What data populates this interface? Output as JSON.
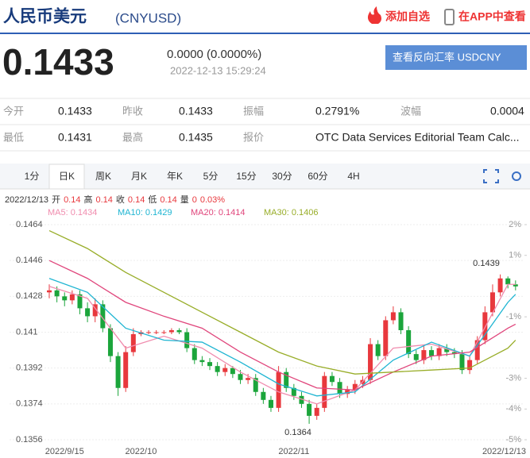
{
  "header": {
    "title": "人民币美元",
    "code": "(CNYUSD)",
    "add_watch": "添加自选",
    "open_app": "在APP中查看"
  },
  "quote": {
    "price": "0.1433",
    "change": "0.0000 (0.0000%)",
    "time": "2022-12-13 15:29:24",
    "reverse_button": "查看反向汇率 USDCNY"
  },
  "stats": [
    [
      {
        "label": "今开",
        "value": "0.1433"
      },
      {
        "label": "昨收",
        "value": "0.1433"
      },
      {
        "label": "振幅",
        "value": "0.2791%"
      },
      {
        "label": "波幅",
        "value": "0.0004"
      }
    ],
    [
      {
        "label": "最低",
        "value": "0.1431"
      },
      {
        "label": "最高",
        "value": "0.1435"
      },
      {
        "label": "报价",
        "value": "OTC Data Services Editorial Team Calc..."
      }
    ]
  ],
  "tabs": [
    "1分",
    "日K",
    "周K",
    "月K",
    "年K",
    "5分",
    "15分",
    "30分",
    "60分",
    "4H"
  ],
  "ohlc": {
    "date": "2022/12/13",
    "items": [
      {
        "label": "开",
        "value": "0.14"
      },
      {
        "label": "高",
        "value": "0.14"
      },
      {
        "label": "收",
        "value": "0.14"
      },
      {
        "label": "低",
        "value": "0.14"
      },
      {
        "label": "量",
        "value": "0"
      }
    ],
    "change": "0.03%"
  },
  "chart_data": {
    "type": "candlestick",
    "categories": [
      null,
      null,
      "2022/9/15",
      null,
      null,
      null,
      null,
      null,
      null,
      null,
      null,
      null,
      "2022/10",
      null,
      null,
      null,
      null,
      null,
      null,
      null,
      null,
      null,
      null,
      null,
      null,
      null,
      null,
      null,
      null,
      null,
      null,
      null,
      "2022/11",
      null,
      null,
      null,
      null,
      null,
      null,
      null,
      null,
      null,
      null,
      null,
      null,
      null,
      null,
      null,
      null,
      null,
      null,
      null,
      null,
      null,
      null,
      null,
      null,
      null,
      null,
      null,
      null,
      "2022/12/13"
    ],
    "open": [
      0.143,
      0.1431,
      0.1428,
      0.1426,
      0.1429,
      0.1422,
      0.1418,
      0.1424,
      0.1412,
      0.1398,
      0.1382,
      0.14,
      0.1409,
      0.141,
      0.141,
      0.141,
      0.141,
      0.1411,
      0.141,
      0.1402,
      0.1396,
      0.1395,
      0.1393,
      0.139,
      0.1392,
      0.1389,
      0.1386,
      0.1387,
      0.138,
      0.1376,
      0.1372,
      0.139,
      0.1382,
      0.1378,
      0.1374,
      0.1368,
      0.1372,
      0.1388,
      0.1385,
      0.1379,
      0.1381,
      0.1384,
      0.1386,
      0.1404,
      0.1398,
      0.1416,
      0.142,
      0.1411,
      0.1399,
      0.1396,
      0.1401,
      0.1398,
      0.1402,
      0.14,
      0.1399,
      0.1391,
      0.1396,
      0.1406,
      0.142,
      0.143,
      0.1437,
      0.1434
    ],
    "close": [
      0.1431,
      0.1428,
      0.1426,
      0.1429,
      0.1422,
      0.1418,
      0.1424,
      0.1412,
      0.1398,
      0.1382,
      0.14,
      0.1409,
      0.141,
      0.141,
      0.141,
      0.141,
      0.1411,
      0.141,
      0.1402,
      0.1396,
      0.1395,
      0.1393,
      0.139,
      0.1392,
      0.1389,
      0.1386,
      0.1387,
      0.138,
      0.1376,
      0.1372,
      0.139,
      0.1382,
      0.1378,
      0.1374,
      0.1368,
      0.1372,
      0.1388,
      0.1385,
      0.1379,
      0.1381,
      0.1384,
      0.1386,
      0.1404,
      0.1398,
      0.1416,
      0.142,
      0.1411,
      0.1399,
      0.1396,
      0.1401,
      0.1398,
      0.1402,
      0.14,
      0.1399,
      0.1391,
      0.1396,
      0.1406,
      0.142,
      0.143,
      0.1437,
      0.1434,
      0.1433
    ],
    "high": [
      0.1434,
      0.1433,
      0.143,
      0.1431,
      0.1431,
      0.1425,
      0.1427,
      0.1426,
      0.1414,
      0.14,
      0.1403,
      0.1412,
      0.1411,
      0.1411,
      0.1411,
      0.1411,
      0.1412,
      0.1412,
      0.1412,
      0.1404,
      0.1398,
      0.1397,
      0.1395,
      0.1394,
      0.1393,
      0.1391,
      0.1389,
      0.1389,
      0.1382,
      0.1378,
      0.1393,
      0.1392,
      0.1384,
      0.138,
      0.1376,
      0.1374,
      0.139,
      0.139,
      0.1387,
      0.1383,
      0.1386,
      0.1388,
      0.1407,
      0.1406,
      0.1418,
      0.1423,
      0.1422,
      0.1413,
      0.1401,
      0.1403,
      0.1403,
      0.1404,
      0.1404,
      0.1402,
      0.1401,
      0.1398,
      0.1408,
      0.1423,
      0.1434,
      0.1439,
      0.1438,
      0.1436
    ],
    "low": [
      0.1427,
      0.1425,
      0.1423,
      0.1424,
      0.1419,
      0.1415,
      0.1415,
      0.141,
      0.1395,
      0.1378,
      0.138,
      0.1398,
      0.1408,
      0.1409,
      0.1409,
      0.1409,
      0.1409,
      0.1409,
      0.14,
      0.1394,
      0.1393,
      0.1391,
      0.1388,
      0.1388,
      0.1387,
      0.1384,
      0.1384,
      0.1378,
      0.1374,
      0.137,
      0.137,
      0.138,
      0.1376,
      0.1372,
      0.1364,
      0.1366,
      0.137,
      0.1383,
      0.1377,
      0.1377,
      0.1379,
      0.1382,
      0.1384,
      0.1396,
      0.1396,
      0.1414,
      0.1409,
      0.1397,
      0.1394,
      0.1394,
      0.1396,
      0.1396,
      0.1398,
      0.1397,
      0.1389,
      0.1389,
      0.1394,
      0.1404,
      0.1418,
      0.1428,
      0.1432,
      0.1431
    ],
    "up_color": "#e8383d",
    "down_color": "#1ba53b",
    "series": [
      {
        "name": "MA5: 0.1434",
        "color": "#f08cae",
        "x": [
          0,
          5,
          10,
          15,
          20,
          25,
          30,
          35,
          40,
          45,
          50,
          55,
          60,
          61
        ],
        "values": [
          0.1433,
          0.1427,
          0.1402,
          0.1408,
          0.1402,
          0.139,
          0.138,
          0.1374,
          0.1381,
          0.1402,
          0.1404,
          0.1398,
          0.1434,
          0.1434
        ]
      },
      {
        "name": "MA10: 0.1429",
        "color": "#1fb5d2",
        "x": [
          0,
          5,
          10,
          15,
          20,
          25,
          30,
          35,
          40,
          45,
          50,
          55,
          60,
          61
        ],
        "values": [
          0.1437,
          0.143,
          0.1412,
          0.1406,
          0.1405,
          0.1395,
          0.1384,
          0.1378,
          0.138,
          0.1396,
          0.1405,
          0.1398,
          0.1425,
          0.1429
        ]
      },
      {
        "name": "MA20: 0.1414",
        "color": "#e0467c",
        "x": [
          0,
          5,
          10,
          15,
          20,
          25,
          30,
          35,
          40,
          45,
          50,
          55,
          60,
          61
        ],
        "values": [
          0.1446,
          0.1437,
          0.1425,
          0.1418,
          0.1412,
          0.14,
          0.139,
          0.1382,
          0.1381,
          0.139,
          0.1398,
          0.14,
          0.1412,
          0.1414
        ]
      },
      {
        "name": "MA30: 0.1406",
        "color": "#98ad28",
        "x": [
          0,
          5,
          10,
          15,
          20,
          25,
          30,
          35,
          40,
          45,
          50,
          55,
          60,
          61
        ],
        "values": [
          0.1461,
          0.1452,
          0.144,
          0.143,
          0.142,
          0.141,
          0.14,
          0.1393,
          0.1389,
          0.139,
          0.1391,
          0.1392,
          0.1402,
          0.1406
        ]
      }
    ],
    "ylim": [
      0.1356,
      0.1464
    ],
    "yticks": [
      0.1464,
      0.1446,
      0.1428,
      0.141,
      0.1392,
      0.1374,
      0.1356
    ],
    "y2lim": [
      -5,
      2
    ],
    "y2ticks": [
      {
        "value": 2,
        "label": "2%"
      },
      {
        "value": 1,
        "label": "1%"
      },
      {
        "value": -1,
        "label": "-1%"
      },
      {
        "value": -3,
        "label": "-3%"
      },
      {
        "value": -4,
        "label": "-4%"
      },
      {
        "value": -5,
        "label": "-5%"
      }
    ],
    "annotations": [
      "0.1439",
      "0.1364"
    ],
    "grid": true
  }
}
